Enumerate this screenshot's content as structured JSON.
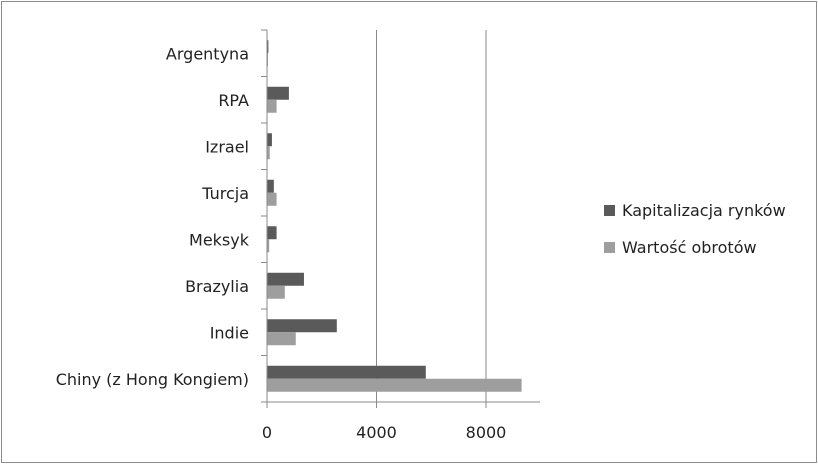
{
  "chart_data": {
    "type": "bar",
    "orientation": "horizontal",
    "categories": [
      "Chiny (z Hong Kongiem)",
      "Indie",
      "Brazylia",
      "Meksyk",
      "Turcja",
      "Izrael",
      "RPA",
      "Argentyna"
    ],
    "series": [
      {
        "name": "Kapitalizacja rynków",
        "color": "#5a5a5a",
        "values": [
          5800,
          2550,
          1350,
          350,
          250,
          180,
          800,
          50
        ]
      },
      {
        "name": "Wartość obrotów",
        "color": "#9e9e9e",
        "values": [
          9300,
          1050,
          650,
          80,
          350,
          100,
          350,
          20
        ]
      }
    ],
    "xlim": [
      0,
      10000
    ],
    "x_ticks": [
      0,
      4000,
      8000
    ],
    "x_tick_labels": [
      "0",
      "4000",
      "8000"
    ],
    "grid": "vertical",
    "legend_position": "right",
    "title": "",
    "xlabel": "",
    "ylabel": ""
  }
}
